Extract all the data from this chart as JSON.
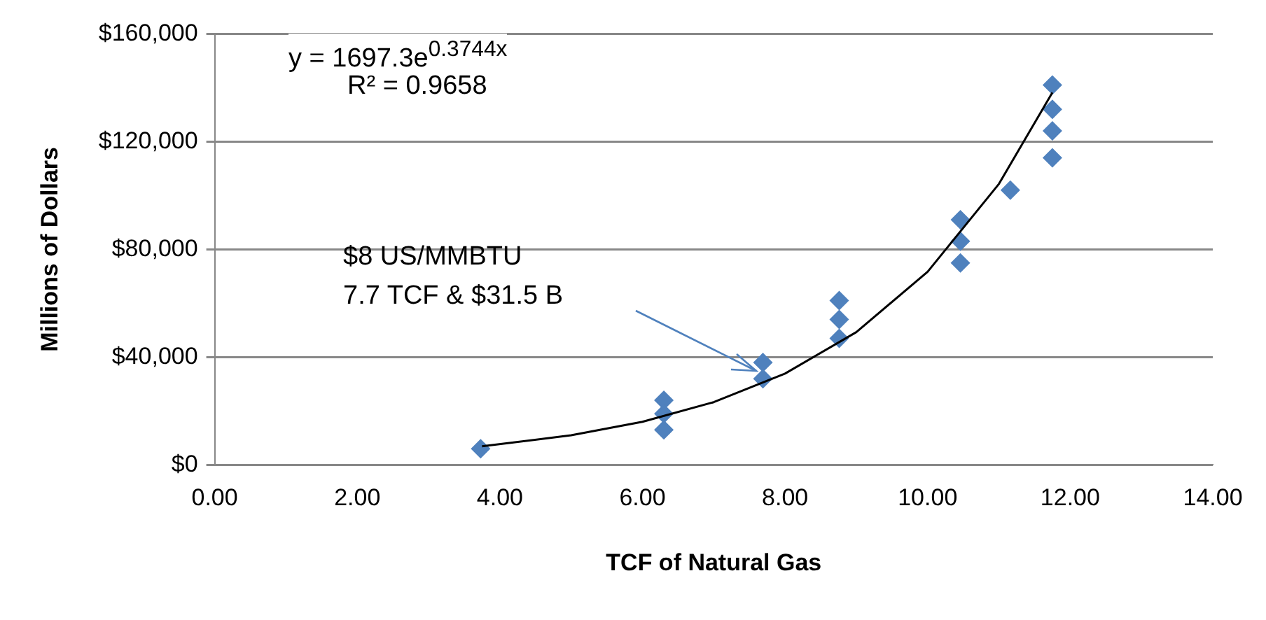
{
  "chart_data": {
    "type": "scatter",
    "xlabel": "TCF of Natural Gas",
    "ylabel": "Millions of Dollars",
    "xlim": [
      0,
      14
    ],
    "xticks": [
      {
        "value": 0,
        "label": "0.00"
      },
      {
        "value": 2,
        "label": "2.00"
      },
      {
        "value": 4,
        "label": "4.00"
      },
      {
        "value": 6,
        "label": "6.00"
      },
      {
        "value": 8,
        "label": "8.00"
      },
      {
        "value": 10,
        "label": "10.00"
      },
      {
        "value": 12,
        "label": "12.00"
      },
      {
        "value": 14,
        "label": "14.00"
      }
    ],
    "ylim": [
      0,
      160000
    ],
    "yticks": [
      {
        "value": 0,
        "label": "$0"
      },
      {
        "value": 40000,
        "label": "$40,000"
      },
      {
        "value": 80000,
        "label": "$80,000"
      },
      {
        "value": 120000,
        "label": "$120,000"
      },
      {
        "value": 160000,
        "label": "$160,000"
      }
    ],
    "grid": "y",
    "legend": false,
    "series": [
      {
        "type": "scatter",
        "color": "#4f81bd",
        "marker": "diamond",
        "x": [
          3.73,
          6.3,
          6.3,
          6.3,
          7.69,
          7.69,
          8.76,
          8.76,
          8.76,
          10.46,
          10.46,
          10.46,
          11.16,
          11.75,
          11.75,
          11.75,
          11.75
        ],
        "values": [
          6000,
          24000,
          19000,
          13000,
          38000,
          32000,
          61000,
          54000,
          47000,
          91000,
          83000,
          75000,
          102000,
          141000,
          132000,
          124000,
          114000
        ]
      },
      {
        "type": "line",
        "color": "#000000",
        "marker": "none",
        "line_style": "solid",
        "x": [
          3.75,
          5,
          6,
          7,
          8,
          9,
          10,
          11,
          11.75
        ],
        "values": [
          6900,
          11000,
          16000,
          23300,
          33900,
          49300,
          71700,
          104300,
          138200
        ]
      }
    ],
    "annotations": [
      "y = 1697.3e$^{0.3744x}$",
      "R² = 0.9658",
      "$8 US/MMBTU\n7.7 TCF & $31.5 B"
    ]
  }
}
